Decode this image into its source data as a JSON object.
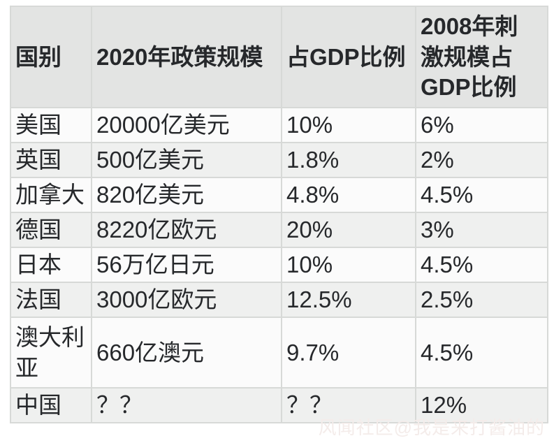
{
  "table": {
    "header": {
      "country": "国别",
      "scale_2020": "2020年政策规模",
      "gdp_share": "占GDP比例",
      "stimulus_2008": "2008年刺\n激规模占\nGDP比例"
    },
    "rows": [
      {
        "country": "美国",
        "scale_2020": "20000亿美元",
        "gdp_share": "10%",
        "stimulus_2008": "6%"
      },
      {
        "country": "英国",
        "scale_2020": "500亿美元",
        "gdp_share": "1.8%",
        "stimulus_2008": "2%"
      },
      {
        "country": "加拿大",
        "scale_2020": "820亿美元",
        "gdp_share": "4.8%",
        "stimulus_2008": "4.5%"
      },
      {
        "country": "德国",
        "scale_2020": "8220亿欧元",
        "gdp_share": "20%",
        "stimulus_2008": "3%"
      },
      {
        "country": "日本",
        "scale_2020": "56万亿日元",
        "gdp_share": "10%",
        "stimulus_2008": "4.5%"
      },
      {
        "country": "法国",
        "scale_2020": "3000亿欧元",
        "gdp_share": "12.5%",
        "stimulus_2008": "2.5%"
      },
      {
        "country": "澳大利亚",
        "scale_2020": "660亿澳元",
        "gdp_share": "9.7%",
        "stimulus_2008": "4.5%"
      },
      {
        "country": "中国",
        "scale_2020": "？？",
        "gdp_share": "？？",
        "stimulus_2008": "12%"
      }
    ]
  },
  "watermark": {
    "text": "风闻社区@我是来打酱油的"
  },
  "colors": {
    "page_bg": "#ffffff",
    "header_bg": "#e3e4e3",
    "row_bg": "#fbfbfb",
    "row_alt_bg": "#eff0ef",
    "border": "#d7d9d7",
    "text": "#26282b",
    "watermark": "#f4ecea"
  }
}
